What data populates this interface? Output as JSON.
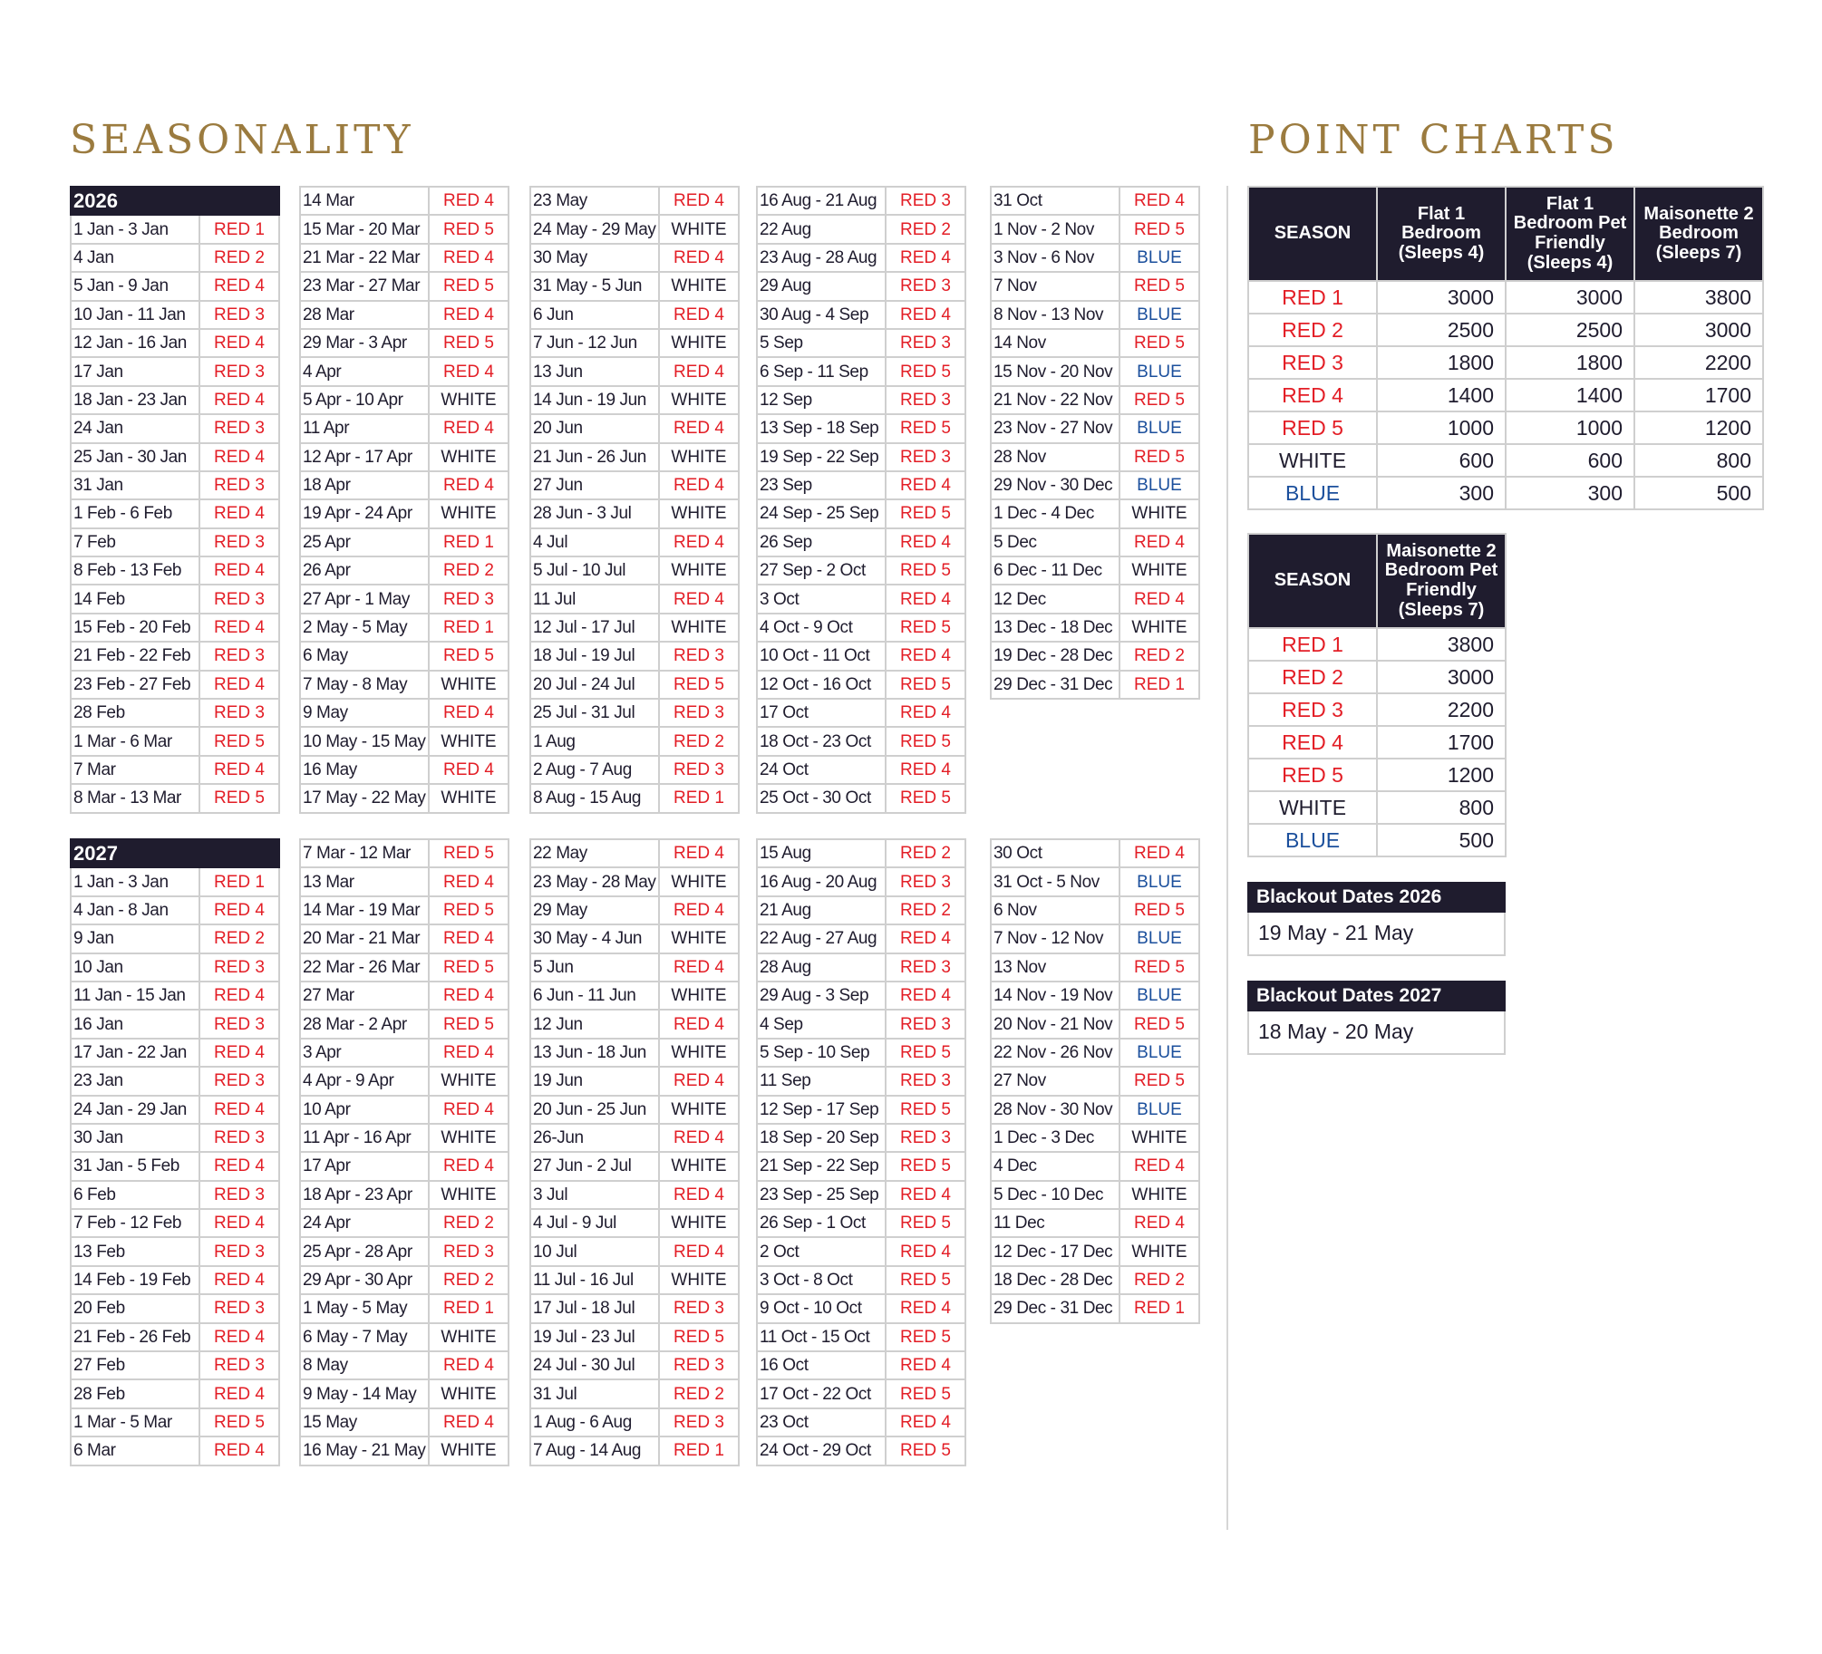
{
  "colors": {
    "heading_gold": "#9b7b3f",
    "navy": "#1f1c2e",
    "red": "#e31e26",
    "blue": "#1b4f9c",
    "white_label": "#1f1c2e",
    "grid": "#cfcfcf",
    "divider": "#d6d6d6"
  },
  "seasonality": {
    "title": "SEASONALITY",
    "years": [
      {
        "label": "2026",
        "columns": [
          [
            [
              "1 Jan - 3 Jan",
              "RED 1"
            ],
            [
              "4 Jan",
              "RED 2"
            ],
            [
              "5 Jan - 9 Jan",
              "RED 4"
            ],
            [
              "10 Jan - 11 Jan",
              "RED 3"
            ],
            [
              "12 Jan - 16 Jan",
              "RED 4"
            ],
            [
              "17 Jan",
              "RED 3"
            ],
            [
              "18 Jan - 23 Jan",
              "RED 4"
            ],
            [
              "24 Jan",
              "RED 3"
            ],
            [
              "25 Jan - 30 Jan",
              "RED 4"
            ],
            [
              "31 Jan",
              "RED 3"
            ],
            [
              "1 Feb - 6 Feb",
              "RED 4"
            ],
            [
              "7 Feb",
              "RED 3"
            ],
            [
              "8 Feb - 13 Feb",
              "RED 4"
            ],
            [
              "14 Feb",
              "RED 3"
            ],
            [
              "15 Feb - 20 Feb",
              "RED 4"
            ],
            [
              "21 Feb - 22 Feb",
              "RED 3"
            ],
            [
              "23 Feb - 27 Feb",
              "RED 4"
            ],
            [
              "28 Feb",
              "RED 3"
            ],
            [
              "1 Mar - 6 Mar",
              "RED 5"
            ],
            [
              "7 Mar",
              "RED 4"
            ],
            [
              "8 Mar - 13 Mar",
              "RED 5"
            ]
          ],
          [
            [
              "14 Mar",
              "RED 4"
            ],
            [
              "15 Mar - 20 Mar",
              "RED 5"
            ],
            [
              "21 Mar - 22 Mar",
              "RED 4"
            ],
            [
              "23 Mar - 27 Mar",
              "RED 5"
            ],
            [
              "28 Mar",
              "RED 4"
            ],
            [
              "29 Mar - 3 Apr",
              "RED 5"
            ],
            [
              "4 Apr",
              "RED 4"
            ],
            [
              "5 Apr - 10 Apr",
              "WHITE"
            ],
            [
              "11 Apr",
              "RED 4"
            ],
            [
              "12 Apr - 17 Apr",
              "WHITE"
            ],
            [
              "18 Apr",
              "RED 4"
            ],
            [
              "19 Apr - 24 Apr",
              "WHITE"
            ],
            [
              "25 Apr",
              "RED 1"
            ],
            [
              "26 Apr",
              "RED 2"
            ],
            [
              "27 Apr - 1 May",
              "RED 3"
            ],
            [
              "2 May - 5 May",
              "RED 1"
            ],
            [
              "6 May",
              "RED 5"
            ],
            [
              "7 May - 8 May",
              "WHITE"
            ],
            [
              "9 May",
              "RED 4"
            ],
            [
              "10 May - 15 May",
              "WHITE"
            ],
            [
              "16 May",
              "RED 4"
            ],
            [
              "17 May - 22 May",
              "WHITE"
            ]
          ],
          [
            [
              "23 May",
              "RED 4"
            ],
            [
              "24 May - 29 May",
              "WHITE"
            ],
            [
              "30 May",
              "RED 4"
            ],
            [
              "31 May - 5 Jun",
              "WHITE"
            ],
            [
              "6 Jun",
              "RED 4"
            ],
            [
              "7 Jun - 12 Jun",
              "WHITE"
            ],
            [
              "13 Jun",
              "RED 4"
            ],
            [
              "14 Jun - 19 Jun",
              "WHITE"
            ],
            [
              "20 Jun",
              "RED 4"
            ],
            [
              "21 Jun - 26 Jun",
              "WHITE"
            ],
            [
              "27 Jun",
              "RED 4"
            ],
            [
              "28 Jun - 3 Jul",
              "WHITE"
            ],
            [
              "4 Jul",
              "RED 4"
            ],
            [
              "5 Jul - 10 Jul",
              "WHITE"
            ],
            [
              "11 Jul",
              "RED 4"
            ],
            [
              "12 Jul - 17 Jul",
              "WHITE"
            ],
            [
              "18 Jul - 19 Jul",
              "RED 3"
            ],
            [
              "20 Jul - 24 Jul",
              "RED 5"
            ],
            [
              "25 Jul - 31 Jul",
              "RED 3"
            ],
            [
              "1 Aug",
              "RED 2"
            ],
            [
              "2 Aug - 7 Aug",
              "RED 3"
            ],
            [
              "8 Aug - 15 Aug",
              "RED 1"
            ]
          ],
          [
            [
              "16 Aug - 21 Aug",
              "RED 3"
            ],
            [
              "22 Aug",
              "RED 2"
            ],
            [
              "23 Aug - 28 Aug",
              "RED 4"
            ],
            [
              "29 Aug",
              "RED 3"
            ],
            [
              "30 Aug - 4 Sep",
              "RED 4"
            ],
            [
              "5 Sep",
              "RED 3"
            ],
            [
              "6 Sep - 11 Sep",
              "RED 5"
            ],
            [
              "12 Sep",
              "RED 3"
            ],
            [
              "13 Sep - 18 Sep",
              "RED 5"
            ],
            [
              "19 Sep - 22 Sep",
              "RED 3"
            ],
            [
              "23 Sep",
              "RED 4"
            ],
            [
              "24 Sep - 25 Sep",
              "RED 5"
            ],
            [
              "26 Sep",
              "RED 4"
            ],
            [
              "27 Sep - 2 Oct",
              "RED 5"
            ],
            [
              "3 Oct",
              "RED 4"
            ],
            [
              "4 Oct - 9 Oct",
              "RED 5"
            ],
            [
              "10 Oct - 11 Oct",
              "RED 4"
            ],
            [
              "12 Oct - 16 Oct",
              "RED 5"
            ],
            [
              "17 Oct",
              "RED 4"
            ],
            [
              "18 Oct - 23 Oct",
              "RED 5"
            ],
            [
              "24 Oct",
              "RED 4"
            ],
            [
              "25 Oct - 30 Oct",
              "RED 5"
            ]
          ],
          [
            [
              "31 Oct",
              "RED 4"
            ],
            [
              "1 Nov - 2 Nov",
              "RED 5"
            ],
            [
              "3 Nov - 6 Nov",
              "BLUE"
            ],
            [
              "7 Nov",
              "RED 5"
            ],
            [
              "8 Nov - 13 Nov",
              "BLUE"
            ],
            [
              "14 Nov",
              "RED 5"
            ],
            [
              "15 Nov - 20 Nov",
              "BLUE"
            ],
            [
              "21 Nov - 22 Nov",
              "RED 5"
            ],
            [
              "23 Nov - 27 Nov",
              "BLUE"
            ],
            [
              "28 Nov",
              "RED 5"
            ],
            [
              "29 Nov - 30 Dec",
              "BLUE"
            ],
            [
              "1 Dec - 4 Dec",
              "WHITE"
            ],
            [
              "5 Dec",
              "RED 4"
            ],
            [
              "6 Dec - 11 Dec",
              "WHITE"
            ],
            [
              "12 Dec",
              "RED 4"
            ],
            [
              "13 Dec - 18 Dec",
              "WHITE"
            ],
            [
              "19 Dec - 28 Dec",
              "RED 2"
            ],
            [
              "29 Dec - 31 Dec",
              "RED 1"
            ]
          ]
        ]
      },
      {
        "label": "2027",
        "columns": [
          [
            [
              "1 Jan - 3 Jan",
              "RED 1"
            ],
            [
              "4 Jan - 8 Jan",
              "RED 4"
            ],
            [
              "9 Jan",
              "RED 2"
            ],
            [
              "10 Jan",
              "RED 3"
            ],
            [
              "11 Jan - 15 Jan",
              "RED 4"
            ],
            [
              "16 Jan",
              "RED 3"
            ],
            [
              "17 Jan - 22 Jan",
              "RED 4"
            ],
            [
              "23 Jan",
              "RED 3"
            ],
            [
              "24 Jan - 29 Jan",
              "RED 4"
            ],
            [
              "30 Jan",
              "RED 3"
            ],
            [
              "31 Jan - 5 Feb",
              "RED 4"
            ],
            [
              "6 Feb",
              "RED 3"
            ],
            [
              "7 Feb - 12 Feb",
              "RED 4"
            ],
            [
              "13 Feb",
              "RED 3"
            ],
            [
              "14 Feb - 19 Feb",
              "RED 4"
            ],
            [
              "20 Feb",
              "RED 3"
            ],
            [
              "21 Feb - 26 Feb",
              "RED 4"
            ],
            [
              "27 Feb",
              "RED 3"
            ],
            [
              "28 Feb",
              "RED 4"
            ],
            [
              "1 Mar - 5 Mar",
              "RED 5"
            ],
            [
              "6 Mar",
              "RED 4"
            ]
          ],
          [
            [
              "7 Mar - 12 Mar",
              "RED 5"
            ],
            [
              "13 Mar",
              "RED 4"
            ],
            [
              "14 Mar - 19 Mar",
              "RED 5"
            ],
            [
              "20 Mar - 21 Mar",
              "RED 4"
            ],
            [
              "22 Mar - 26 Mar",
              "RED 5"
            ],
            [
              "27 Mar",
              "RED 4"
            ],
            [
              "28 Mar - 2 Apr",
              "RED 5"
            ],
            [
              "3 Apr",
              "RED 4"
            ],
            [
              "4 Apr - 9 Apr",
              "WHITE"
            ],
            [
              "10 Apr",
              "RED 4"
            ],
            [
              "11 Apr - 16 Apr",
              "WHITE"
            ],
            [
              "17 Apr",
              "RED 4"
            ],
            [
              "18 Apr - 23 Apr",
              "WHITE"
            ],
            [
              "24 Apr",
              "RED 2"
            ],
            [
              "25 Apr - 28 Apr",
              "RED 3"
            ],
            [
              "29 Apr - 30 Apr",
              "RED 2"
            ],
            [
              "1 May - 5 May",
              "RED 1"
            ],
            [
              "6 May - 7 May",
              "WHITE"
            ],
            [
              "8 May",
              "RED 4"
            ],
            [
              "9 May - 14 May",
              "WHITE"
            ],
            [
              "15 May",
              "RED 4"
            ],
            [
              "16 May - 21 May",
              "WHITE"
            ]
          ],
          [
            [
              "22 May",
              "RED 4"
            ],
            [
              "23 May - 28 May",
              "WHITE"
            ],
            [
              "29 May",
              "RED 4"
            ],
            [
              "30 May - 4 Jun",
              "WHITE"
            ],
            [
              "5 Jun",
              "RED 4"
            ],
            [
              "6 Jun - 11 Jun",
              "WHITE"
            ],
            [
              "12 Jun",
              "RED 4"
            ],
            [
              "13 Jun - 18 Jun",
              "WHITE"
            ],
            [
              "19 Jun",
              "RED 4"
            ],
            [
              "20 Jun - 25 Jun",
              "WHITE"
            ],
            [
              "26-Jun",
              "RED 4"
            ],
            [
              "27 Jun - 2 Jul",
              "WHITE"
            ],
            [
              "3 Jul",
              "RED 4"
            ],
            [
              "4 Jul - 9 Jul",
              "WHITE"
            ],
            [
              "10 Jul",
              "RED 4"
            ],
            [
              "11 Jul - 16 Jul",
              "WHITE"
            ],
            [
              "17 Jul - 18 Jul",
              "RED 3"
            ],
            [
              "19 Jul - 23 Jul",
              "RED 5"
            ],
            [
              "24 Jul - 30 Jul",
              "RED 3"
            ],
            [
              "31 Jul",
              "RED 2"
            ],
            [
              "1 Aug - 6 Aug",
              "RED 3"
            ],
            [
              "7 Aug - 14 Aug",
              "RED 1"
            ]
          ],
          [
            [
              "15 Aug",
              "RED 2"
            ],
            [
              "16 Aug - 20 Aug",
              "RED 3"
            ],
            [
              "21 Aug",
              "RED 2"
            ],
            [
              "22 Aug - 27 Aug",
              "RED 4"
            ],
            [
              "28 Aug",
              "RED 3"
            ],
            [
              "29 Aug - 3 Sep",
              "RED 4"
            ],
            [
              "4 Sep",
              "RED 3"
            ],
            [
              "5 Sep - 10 Sep",
              "RED 5"
            ],
            [
              "11 Sep",
              "RED 3"
            ],
            [
              "12 Sep - 17 Sep",
              "RED 5"
            ],
            [
              "18 Sep - 20 Sep",
              "RED 3"
            ],
            [
              "21 Sep - 22 Sep",
              "RED 5"
            ],
            [
              "23 Sep - 25 Sep",
              "RED 4"
            ],
            [
              "26 Sep - 1 Oct",
              "RED 5"
            ],
            [
              "2 Oct",
              "RED 4"
            ],
            [
              "3 Oct - 8 Oct",
              "RED 5"
            ],
            [
              "9 Oct - 10 Oct",
              "RED 4"
            ],
            [
              "11 Oct - 15 Oct",
              "RED 5"
            ],
            [
              "16 Oct",
              "RED 4"
            ],
            [
              "17 Oct - 22 Oct",
              "RED 5"
            ],
            [
              "23 Oct",
              "RED 4"
            ],
            [
              "24 Oct - 29 Oct",
              "RED 5"
            ]
          ],
          [
            [
              "30 Oct",
              "RED 4"
            ],
            [
              "31 Oct - 5 Nov",
              "BLUE"
            ],
            [
              "6 Nov",
              "RED 5"
            ],
            [
              "7 Nov - 12 Nov",
              "BLUE"
            ],
            [
              "13 Nov",
              "RED 5"
            ],
            [
              "14 Nov - 19 Nov",
              "BLUE"
            ],
            [
              "20 Nov - 21 Nov",
              "RED 5"
            ],
            [
              "22 Nov - 26 Nov",
              "BLUE"
            ],
            [
              "27 Nov",
              "RED 5"
            ],
            [
              "28 Nov - 30 Nov",
              "BLUE"
            ],
            [
              "1 Dec - 3 Dec",
              "WHITE"
            ],
            [
              "4 Dec",
              "RED 4"
            ],
            [
              "5 Dec - 10 Dec",
              "WHITE"
            ],
            [
              "11 Dec",
              "RED 4"
            ],
            [
              "12 Dec - 17 Dec",
              "WHITE"
            ],
            [
              "18 Dec - 28 Dec",
              "RED 2"
            ],
            [
              "29 Dec - 31 Dec",
              "RED 1"
            ]
          ]
        ]
      }
    ]
  },
  "point_charts": {
    "title": "POINT CHARTS",
    "table1": {
      "headers": [
        "SEASON",
        "Flat 1 Bedroom (Sleeps 4)",
        "Flat 1 Bedroom Pet Friendly (Sleeps 4)",
        "Maisonette 2 Bedroom (Sleeps 7)"
      ],
      "rows": [
        [
          "RED 1",
          "3000",
          "3000",
          "3800"
        ],
        [
          "RED 2",
          "2500",
          "2500",
          "3000"
        ],
        [
          "RED 3",
          "1800",
          "1800",
          "2200"
        ],
        [
          "RED 4",
          "1400",
          "1400",
          "1700"
        ],
        [
          "RED 5",
          "1000",
          "1000",
          "1200"
        ],
        [
          "WHITE",
          "600",
          "600",
          "800"
        ],
        [
          "BLUE",
          "300",
          "300",
          "500"
        ]
      ]
    },
    "table2": {
      "headers": [
        "SEASON",
        "Maisonette 2 Bedroom Pet Friendly (Sleeps 7)"
      ],
      "rows": [
        [
          "RED 1",
          "3800"
        ],
        [
          "RED 2",
          "3000"
        ],
        [
          "RED 3",
          "2200"
        ],
        [
          "RED 4",
          "1700"
        ],
        [
          "RED 5",
          "1200"
        ],
        [
          "WHITE",
          "800"
        ],
        [
          "BLUE",
          "500"
        ]
      ]
    },
    "blackouts": [
      {
        "title": "Blackout Dates 2026",
        "dates": "19 May - 21 May"
      },
      {
        "title": "Blackout Dates 2027",
        "dates": "18 May - 20 May"
      }
    ]
  }
}
